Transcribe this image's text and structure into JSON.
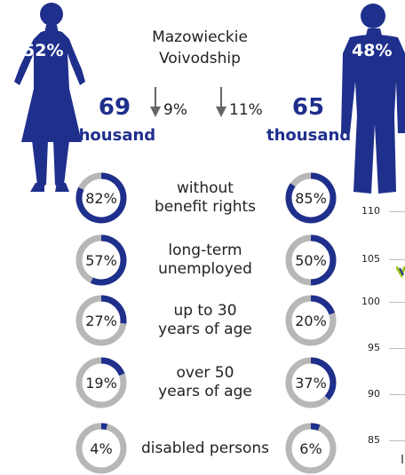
{
  "colors": {
    "navy": "#1f2f8c",
    "gray": "#b7b7b7",
    "green": "#9ac31c"
  },
  "region": {
    "line1": "Mazowieckie",
    "line2": "Voivodship"
  },
  "women": {
    "share": "52%",
    "count": "69",
    "unit": "thousand",
    "change": "9%"
  },
  "men": {
    "share": "48%",
    "count": "65",
    "unit": "thousand",
    "change": "11%"
  },
  "chart_data": {
    "type": "pie",
    "categories": [
      "without benefit rights",
      "long-term unemployed",
      "up to 30 years of age",
      "over 50 years of age",
      "disabled persons"
    ],
    "category_lines": [
      [
        "without",
        "benefit rights"
      ],
      [
        "long-term",
        "unemployed"
      ],
      [
        "up to 30",
        "years of age"
      ],
      [
        "over 50",
        "years of age"
      ],
      [
        "disabled persons"
      ]
    ],
    "series": [
      {
        "values": [
          82,
          57,
          27,
          19,
          4
        ],
        "labels": [
          "82%",
          "57%",
          "27%",
          "19%",
          "4%"
        ]
      },
      {
        "values": [
          85,
          50,
          20,
          37,
          6
        ],
        "labels": [
          "85%",
          "50%",
          "20%",
          "37%",
          "6%"
        ]
      }
    ],
    "side_axis": {
      "ticks": [
        "110",
        "105",
        "100",
        "95",
        "90",
        "85"
      ]
    }
  }
}
